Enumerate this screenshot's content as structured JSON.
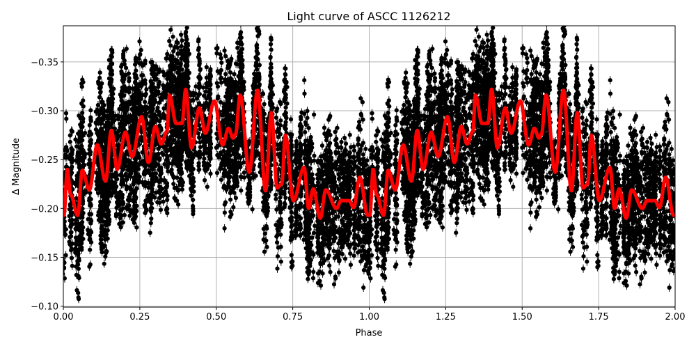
{
  "chart_data": {
    "type": "scatter",
    "title": "Light curve of ASCC 1126212",
    "xlabel": "Phase",
    "ylabel": "Δ Magnitude",
    "xlim": [
      0,
      2.0
    ],
    "ylim": [
      -0.387,
      -0.099
    ],
    "y_inverted": true,
    "grid": true,
    "x_ticks": [
      "0.00",
      "0.25",
      "0.50",
      "0.75",
      "1.00",
      "1.25",
      "1.50",
      "1.75",
      "2.00"
    ],
    "y_ticks": [
      "−0.35",
      "−0.30",
      "−0.25",
      "−0.20",
      "−0.15",
      "−0.10"
    ],
    "x_tick_values": [
      0,
      0.25,
      0.5,
      0.75,
      1.0,
      1.25,
      1.5,
      1.75,
      2.0
    ],
    "y_tick_values": [
      -0.35,
      -0.3,
      -0.25,
      -0.2,
      -0.15,
      -0.1
    ],
    "series": [
      {
        "role": "observations with error bars",
        "color": "#000000",
        "marker": "circle"
      },
      {
        "role": "model fit (repeats each phase cycle)",
        "color": "#ff0000",
        "phase": [
          0.002,
          0.013,
          0.024,
          0.047,
          0.062,
          0.085,
          0.111,
          0.138,
          0.157,
          0.176,
          0.203,
          0.225,
          0.256,
          0.278,
          0.301,
          0.32,
          0.339,
          0.347,
          0.369,
          0.388,
          0.4,
          0.419,
          0.445,
          0.464,
          0.494,
          0.521,
          0.54,
          0.555,
          0.563,
          0.578,
          0.608,
          0.635,
          0.661,
          0.68,
          0.699,
          0.714,
          0.726,
          0.752,
          0.787,
          0.802,
          0.817,
          0.84,
          0.858,
          0.893,
          0.908,
          0.934,
          0.949,
          0.969,
          0.995
        ],
        "magnitude": [
          -0.193,
          -0.24,
          -0.214,
          -0.193,
          -0.239,
          -0.219,
          -0.265,
          -0.228,
          -0.28,
          -0.24,
          -0.278,
          -0.253,
          -0.294,
          -0.247,
          -0.284,
          -0.266,
          -0.279,
          -0.316,
          -0.287,
          -0.287,
          -0.322,
          -0.262,
          -0.303,
          -0.277,
          -0.31,
          -0.265,
          -0.282,
          -0.272,
          -0.276,
          -0.316,
          -0.237,
          -0.321,
          -0.218,
          -0.298,
          -0.221,
          -0.225,
          -0.275,
          -0.208,
          -0.242,
          -0.2,
          -0.22,
          -0.19,
          -0.219,
          -0.2,
          -0.208,
          -0.208,
          -0.201,
          -0.232,
          -0.193
        ]
      }
    ]
  }
}
